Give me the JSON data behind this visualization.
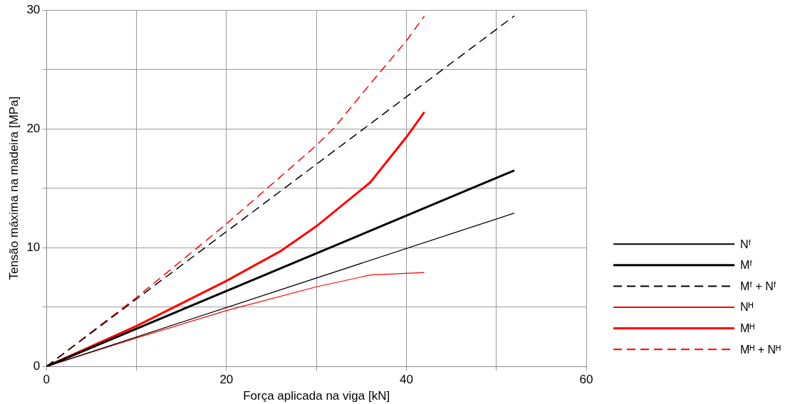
{
  "chart_data": {
    "type": "line",
    "xlabel": "Força aplicada na viga [kN]",
    "ylabel": "Tensão máxima na madeira [MPa]",
    "xlim": [
      0,
      60
    ],
    "xticks": [
      0,
      {
        "value": 10,
        "label": null
      },
      20,
      {
        "value": 30,
        "label": null
      },
      40,
      {
        "value": 50,
        "label": null
      },
      60
    ],
    "ylim": [
      0,
      30
    ],
    "yticks": [
      0,
      {
        "value": 5,
        "label": null
      },
      10,
      {
        "value": 15,
        "label": null
      },
      20,
      {
        "value": 25,
        "label": null
      },
      30
    ],
    "grid": true,
    "legend": "right",
    "marker": "none",
    "series": [
      {
        "name": "Nᶠ",
        "color": "#000000",
        "line_style": "solid",
        "x": [
          0,
          52
        ],
        "values": [
          0,
          12.9
        ]
      },
      {
        "name": "Mᶠ",
        "color": "#000000",
        "line_style": "solid",
        "x": [
          0,
          52
        ],
        "values": [
          0,
          16.5
        ]
      },
      {
        "name": "Mᶠ + Nᶠ",
        "color": "#000000",
        "line_style": "dashed",
        "x": [
          0,
          52
        ],
        "values": [
          0,
          29.5
        ]
      },
      {
        "name": "Nᴴ",
        "color": "#ff0000",
        "line_style": "solid",
        "x": [
          0,
          10,
          20,
          30,
          36,
          42
        ],
        "values": [
          0,
          2.4,
          4.7,
          6.7,
          7.7,
          7.9
        ]
      },
      {
        "name": "Mᴴ",
        "color": "#ff0000",
        "line_style": "solid",
        "x": [
          0,
          10,
          20,
          26,
          30,
          36,
          38,
          40,
          42
        ],
        "values": [
          0,
          3.4,
          7.2,
          9.7,
          11.8,
          15.5,
          17.4,
          19.3,
          21.4
        ]
      },
      {
        "name": "Mᴴ + Nᴴ",
        "color": "#ff0000",
        "line_style": "dashed",
        "x": [
          0,
          10,
          20,
          30,
          32,
          36,
          40,
          42
        ],
        "values": [
          0,
          5.8,
          12.0,
          18.6,
          20.1,
          23.8,
          27.4,
          29.5
        ]
      }
    ]
  }
}
